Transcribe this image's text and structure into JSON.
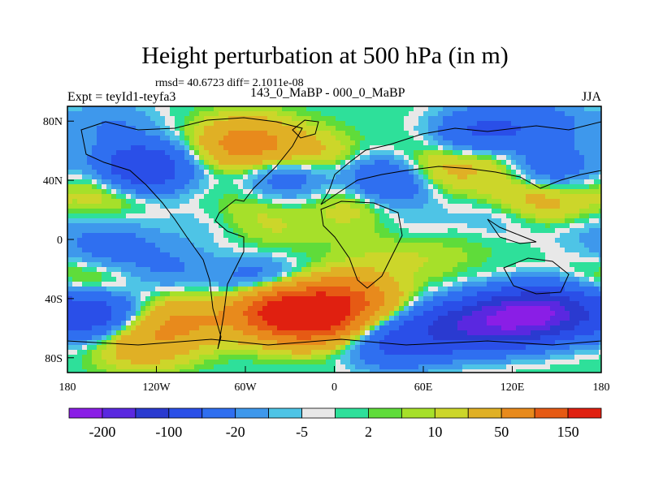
{
  "chart_data": {
    "type": "heatmap",
    "title": "Height perturbation at 500 hPa (in m)",
    "stats_label": "rmsd= 40.6723 diff= 2.1011e-08",
    "left_label": "Expt = teyId1-teyfa3",
    "center_label": "143_0_MaBP - 000_0_MaBP",
    "right_label": "JJA",
    "xlim": [
      -180,
      180
    ],
    "ylim": [
      -90,
      90
    ],
    "x_ticks": [
      {
        "value": -180,
        "label": "180"
      },
      {
        "value": -120,
        "label": "120W"
      },
      {
        "value": -60,
        "label": "60W"
      },
      {
        "value": 0,
        "label": "0"
      },
      {
        "value": 60,
        "label": "60E"
      },
      {
        "value": 120,
        "label": "120E"
      },
      {
        "value": 180,
        "label": "180"
      }
    ],
    "y_ticks": [
      {
        "value": 80,
        "label": "80N"
      },
      {
        "value": 40,
        "label": "40N"
      },
      {
        "value": 0,
        "label": "0"
      },
      {
        "value": -40,
        "label": "40S"
      },
      {
        "value": -80,
        "label": "80S"
      }
    ],
    "colorbar": {
      "colors": [
        "#8a1ee6",
        "#5a28e0",
        "#2a3ad0",
        "#2a4fe8",
        "#2f6ff0",
        "#3e98ec",
        "#4ec4e6",
        "#e8e8e8",
        "#2ee09a",
        "#5fdc3a",
        "#a6e02a",
        "#ccd62a",
        "#e0b025",
        "#e88a1c",
        "#e65a14",
        "#e02010"
      ],
      "labels": [
        "-200",
        "-100",
        "-20",
        "-5",
        "2",
        "10",
        "50",
        "150"
      ]
    },
    "features": [
      {
        "lon": -15,
        "lat": -52,
        "value": 180
      },
      {
        "lon": -40,
        "lat": -48,
        "value": 130
      },
      {
        "lon": 10,
        "lat": -40,
        "value": 90
      },
      {
        "lon": -100,
        "lat": -55,
        "value": 50
      },
      {
        "lon": -130,
        "lat": -70,
        "value": 40
      },
      {
        "lon": -60,
        "lat": 65,
        "value": 70
      },
      {
        "lon": -20,
        "lat": 55,
        "value": 40
      },
      {
        "lon": 60,
        "lat": 45,
        "value": 40
      },
      {
        "lon": 105,
        "lat": 55,
        "value": 25
      },
      {
        "lon": 125,
        "lat": 30,
        "value": 20
      },
      {
        "lon": 150,
        "lat": 25,
        "value": 20
      },
      {
        "lon": -150,
        "lat": 35,
        "value": 25
      },
      {
        "lon": 15,
        "lat": 25,
        "value": 20
      },
      {
        "lon": -165,
        "lat": -30,
        "value": 20
      },
      {
        "lon": -60,
        "lat": 20,
        "value": 10
      },
      {
        "lon": 30,
        "lat": -5,
        "value": 8
      },
      {
        "lon": -35,
        "lat": 5,
        "value": 8
      },
      {
        "lon": 60,
        "lat": -15,
        "value": 8
      },
      {
        "lon": 95,
        "lat": 0,
        "value": 5
      },
      {
        "lon": 140,
        "lat": -50,
        "value": -180
      },
      {
        "lon": 110,
        "lat": -55,
        "value": -130
      },
      {
        "lon": 80,
        "lat": -60,
        "value": -90
      },
      {
        "lon": 40,
        "lat": -70,
        "value": -60
      },
      {
        "lon": -165,
        "lat": -50,
        "value": -80
      },
      {
        "lon": -130,
        "lat": 48,
        "value": -100
      },
      {
        "lon": 40,
        "lat": 40,
        "value": -70
      },
      {
        "lon": 100,
        "lat": 72,
        "value": -60
      },
      {
        "lon": -30,
        "lat": 45,
        "value": -50
      },
      {
        "lon": 140,
        "lat": 78,
        "value": -30
      },
      {
        "lon": 145,
        "lat": 48,
        "value": -40
      },
      {
        "lon": -150,
        "lat": 78,
        "value": -20
      },
      {
        "lon": -150,
        "lat": -5,
        "value": -30
      },
      {
        "lon": -50,
        "lat": -30,
        "value": -40
      },
      {
        "lon": 110,
        "lat": 15,
        "value": -15
      },
      {
        "lon": -90,
        "lat": 10,
        "value": -8
      },
      {
        "lon": 50,
        "lat": 10,
        "value": -8
      },
      {
        "lon": -110,
        "lat": -20,
        "value": -20
      },
      {
        "lon": 170,
        "lat": 5,
        "value": -10
      }
    ]
  }
}
